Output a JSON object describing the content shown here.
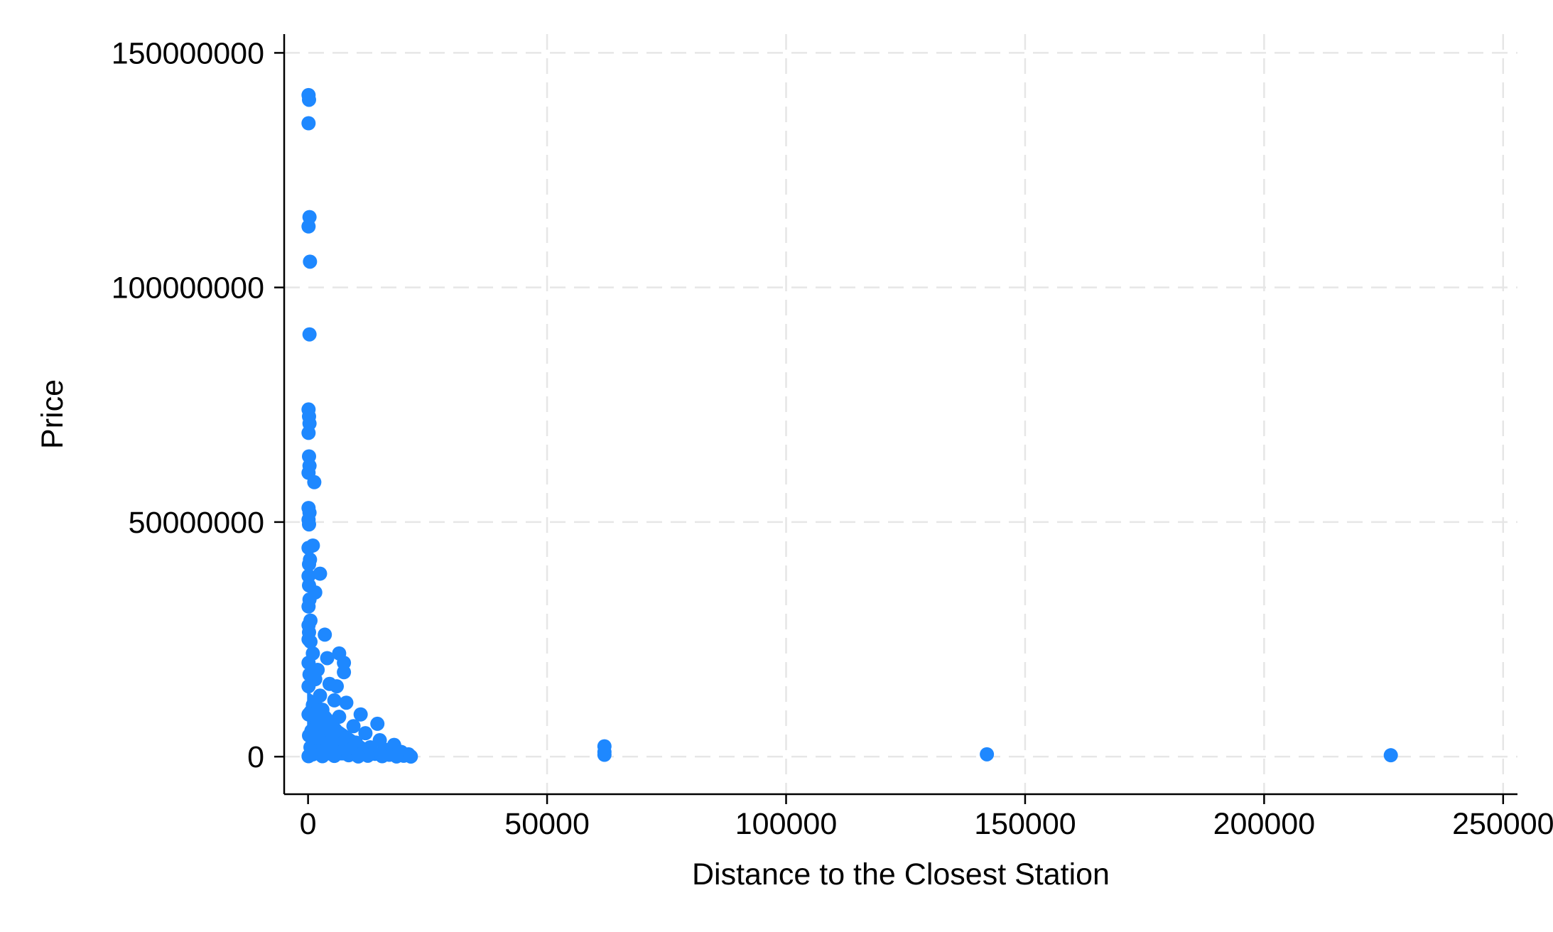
{
  "chart_data": {
    "type": "scatter",
    "title": "",
    "xlabel": "Distance to the Closest Station",
    "ylabel": "Price",
    "xlim": [
      -5000,
      253000
    ],
    "ylim": [
      -8000000,
      154000000
    ],
    "xticks": [
      0,
      50000,
      100000,
      150000,
      200000,
      250000
    ],
    "yticks": [
      0,
      50000000,
      100000000,
      150000000
    ],
    "xtick_labels": [
      "0",
      "50000",
      "100000",
      "150000",
      "200000",
      "250000"
    ],
    "ytick_labels": [
      "0",
      "50000000",
      "100000000",
      "150000000"
    ],
    "grid": true,
    "legend": "none",
    "colors": {
      "points": "#1E88FF",
      "grid": "#E6E6E6",
      "axis": "#000000"
    },
    "series": [
      {
        "values": [
          [
            100,
            141000000
          ],
          [
            200,
            140000000
          ],
          [
            100,
            135000000
          ],
          [
            300,
            115000000
          ],
          [
            100,
            113000000
          ],
          [
            400,
            105500000
          ],
          [
            300,
            90000000
          ],
          [
            100,
            74000000
          ],
          [
            200,
            72500000
          ],
          [
            300,
            71000000
          ],
          [
            100,
            69000000
          ],
          [
            200,
            64000000
          ],
          [
            300,
            62000000
          ],
          [
            100,
            60500000
          ],
          [
            1300,
            58500000
          ],
          [
            100,
            53000000
          ],
          [
            300,
            52000000
          ],
          [
            100,
            50500000
          ],
          [
            200,
            49500000
          ],
          [
            1000,
            45000000
          ],
          [
            100,
            44500000
          ],
          [
            400,
            42000000
          ],
          [
            200,
            41000000
          ],
          [
            2500,
            39000000
          ],
          [
            100,
            38500000
          ],
          [
            200,
            36500000
          ],
          [
            1500,
            35000000
          ],
          [
            300,
            33500000
          ],
          [
            100,
            32000000
          ],
          [
            500,
            29000000
          ],
          [
            100,
            28000000
          ],
          [
            200,
            26500000
          ],
          [
            3500,
            26000000
          ],
          [
            100,
            25000000
          ],
          [
            500,
            24500000
          ],
          [
            6500,
            22000000
          ],
          [
            1000,
            22000000
          ],
          [
            4000,
            21000000
          ],
          [
            7500,
            20000000
          ],
          [
            100,
            20000000
          ],
          [
            2000,
            18500000
          ],
          [
            7500,
            18000000
          ],
          [
            300,
            17500000
          ],
          [
            1500,
            16500000
          ],
          [
            4500,
            15500000
          ],
          [
            6000,
            15000000
          ],
          [
            100,
            15000000
          ],
          [
            2500,
            13000000
          ],
          [
            5500,
            12000000
          ],
          [
            8000,
            11500000
          ],
          [
            1000,
            11000000
          ],
          [
            3000,
            10000000
          ],
          [
            500,
            9500000
          ],
          [
            11000,
            9000000
          ],
          [
            100,
            9000000
          ],
          [
            6500,
            8500000
          ],
          [
            14500,
            7000000
          ],
          [
            2000,
            7000000
          ],
          [
            9500,
            6500000
          ],
          [
            4000,
            6000000
          ],
          [
            700,
            5500000
          ],
          [
            12000,
            5000000
          ],
          [
            5000,
            4500000
          ],
          [
            200,
            4500000
          ],
          [
            8000,
            4000000
          ],
          [
            15000,
            3500000
          ],
          [
            1500,
            3500000
          ],
          [
            3000,
            3000000
          ],
          [
            10000,
            3000000
          ],
          [
            18000,
            2500000
          ],
          [
            6000,
            2500000
          ],
          [
            13000,
            2000000
          ],
          [
            500,
            2000000
          ],
          [
            9000,
            1500000
          ],
          [
            16000,
            1500000
          ],
          [
            2000,
            1200000
          ],
          [
            19500,
            1000000
          ],
          [
            7000,
            1000000
          ],
          [
            11500,
            800000
          ],
          [
            4500,
            700000
          ],
          [
            14000,
            600000
          ],
          [
            21000,
            500000
          ],
          [
            1000,
            500000
          ],
          [
            17000,
            400000
          ],
          [
            8500,
            300000
          ],
          [
            300,
            300000
          ],
          [
            12500,
            200000
          ],
          [
            20000,
            200000
          ],
          [
            5500,
            150000
          ],
          [
            3000,
            100000
          ],
          [
            15500,
            100000
          ],
          [
            100,
            100000
          ],
          [
            18500,
            50000
          ],
          [
            10500,
            50000
          ],
          [
            21500,
            30000
          ],
          [
            62000,
            2200000
          ],
          [
            62000,
            1000000
          ],
          [
            62000,
            400000
          ],
          [
            142000,
            500000
          ],
          [
            226500,
            300000
          ]
        ]
      }
    ]
  }
}
